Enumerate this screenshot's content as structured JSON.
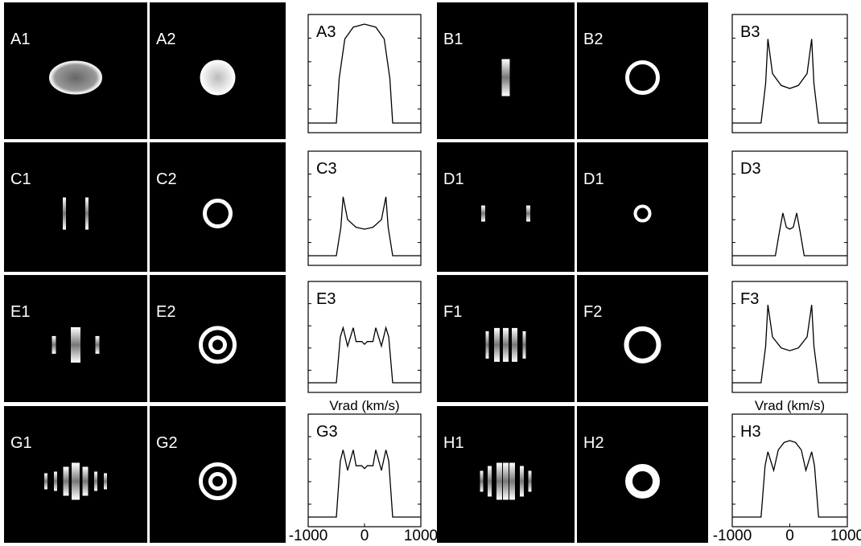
{
  "rows": [
    {
      "left": {
        "labels": [
          "A1",
          "A2",
          "A3"
        ],
        "profile": {
          "x": [
            -1000,
            -500,
            -450,
            -350,
            -200,
            0,
            200,
            350,
            450,
            500,
            1000
          ],
          "y": [
            0,
            0,
            0.45,
            0.85,
            0.97,
            1,
            0.97,
            0.85,
            0.45,
            0,
            0
          ]
        }
      },
      "right": {
        "labels": [
          "B1",
          "B2",
          "B3"
        ],
        "profile": {
          "x": [
            -1000,
            -500,
            -420,
            -380,
            -300,
            -150,
            0,
            150,
            300,
            380,
            420,
            500,
            1000
          ],
          "y": [
            0,
            0,
            0.4,
            0.85,
            0.5,
            0.38,
            0.35,
            0.38,
            0.5,
            0.85,
            0.4,
            0,
            0
          ]
        }
      }
    },
    {
      "left": {
        "labels": [
          "C1",
          "C2",
          "C3"
        ],
        "profile": {
          "x": [
            -1000,
            -500,
            -420,
            -380,
            -300,
            -150,
            0,
            150,
            300,
            380,
            420,
            500,
            1000
          ],
          "y": [
            0,
            0,
            0.3,
            0.62,
            0.38,
            0.3,
            0.28,
            0.3,
            0.38,
            0.62,
            0.3,
            0,
            0
          ]
        }
      },
      "right": {
        "labels": [
          "D1",
          "D1",
          "D3"
        ],
        "profile": {
          "x": [
            -1000,
            -250,
            -180,
            -120,
            -60,
            0,
            60,
            120,
            180,
            250,
            1000
          ],
          "y": [
            0,
            0,
            0.25,
            0.45,
            0.3,
            0.28,
            0.3,
            0.45,
            0.25,
            0,
            0
          ]
        }
      }
    },
    {
      "left": {
        "labels": [
          "E1",
          "E2",
          "E3"
        ],
        "profile": {
          "x": [
            -1000,
            -500,
            -430,
            -380,
            -300,
            -200,
            -150,
            -50,
            0,
            50,
            150,
            200,
            300,
            380,
            430,
            500,
            1000
          ],
          "y": [
            0,
            0,
            0.5,
            0.6,
            0.4,
            0.6,
            0.45,
            0.45,
            0.42,
            0.45,
            0.45,
            0.6,
            0.4,
            0.6,
            0.5,
            0,
            0
          ]
        }
      },
      "right": {
        "labels": [
          "F1",
          "F2",
          "F3"
        ],
        "profile": {
          "x": [
            -1000,
            -500,
            -420,
            -380,
            -300,
            -150,
            0,
            150,
            300,
            380,
            420,
            500,
            1000
          ],
          "y": [
            0,
            0,
            0.4,
            0.85,
            0.5,
            0.38,
            0.35,
            0.38,
            0.5,
            0.85,
            0.4,
            0,
            0
          ]
        }
      },
      "axis_labels": [
        "Vrad (km/s)",
        "Vrad (km/s)"
      ]
    },
    {
      "left": {
        "labels": [
          "G1",
          "G2",
          "G3"
        ],
        "profile": {
          "x": [
            -1000,
            -500,
            -430,
            -380,
            -300,
            -200,
            -150,
            -50,
            0,
            50,
            150,
            200,
            300,
            380,
            430,
            500,
            1000
          ],
          "y": [
            0,
            0,
            0.6,
            0.72,
            0.5,
            0.72,
            0.55,
            0.55,
            0.52,
            0.55,
            0.55,
            0.72,
            0.5,
            0.72,
            0.6,
            0,
            0
          ]
        }
      },
      "right": {
        "labels": [
          "H1",
          "H2",
          "H3"
        ],
        "profile": {
          "x": [
            -1000,
            -500,
            -430,
            -380,
            -280,
            -200,
            -100,
            0,
            100,
            200,
            280,
            380,
            430,
            500,
            1000
          ],
          "y": [
            0,
            0,
            0.55,
            0.7,
            0.5,
            0.72,
            0.8,
            0.82,
            0.8,
            0.72,
            0.5,
            0.7,
            0.55,
            0,
            0
          ]
        }
      }
    }
  ],
  "xlim": [
    -1000,
    1000
  ],
  "xticks": [
    -1000,
    0,
    1000
  ]
}
